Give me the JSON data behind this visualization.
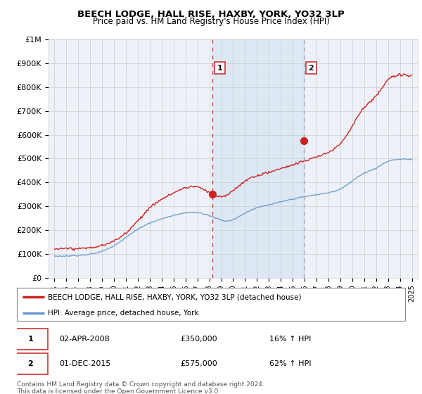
{
  "title": "BEECH LODGE, HALL RISE, HAXBY, YORK, YO32 3LP",
  "subtitle": "Price paid vs. HM Land Registry's House Price Index (HPI)",
  "hpi_label": "HPI: Average price, detached house, York",
  "property_label": "BEECH LODGE, HALL RISE, HAXBY, YORK, YO32 3LP (detached house)",
  "footer": "Contains HM Land Registry data © Crown copyright and database right 2024.\nThis data is licensed under the Open Government Licence v3.0.",
  "sale1_date": 2008.25,
  "sale1_price": 350000,
  "sale1_label": "1",
  "sale1_text": "02-APR-2008",
  "sale1_hpi_change": "16% ↑ HPI",
  "sale2_date": 2015.92,
  "sale2_price": 575000,
  "sale2_label": "2",
  "sale2_text": "01-DEC-2015",
  "sale2_hpi_change": "62% ↑ HPI",
  "ylim": [
    0,
    1000000
  ],
  "xlim_start": 1994.5,
  "xlim_end": 2025.5,
  "hpi_color": "#6699cc",
  "property_color": "#cc2222",
  "shade_color": "#dce9f5",
  "dashed1_color": "#dd4444",
  "dashed2_color": "#aaaacc",
  "bg_color": "#eef2f8",
  "grid_color": "#cccccc",
  "ytick_labels": [
    "£0",
    "£100K",
    "£200K",
    "£300K",
    "£400K",
    "£500K",
    "£600K",
    "£700K",
    "£800K",
    "£900K",
    "£1M"
  ],
  "ytick_values": [
    0,
    100000,
    200000,
    300000,
    400000,
    500000,
    600000,
    700000,
    800000,
    900000,
    1000000
  ],
  "xtick_years": [
    1995,
    1996,
    1997,
    1998,
    1999,
    2000,
    2001,
    2002,
    2003,
    2004,
    2005,
    2006,
    2007,
    2008,
    2009,
    2010,
    2011,
    2012,
    2013,
    2014,
    2015,
    2016,
    2017,
    2018,
    2019,
    2020,
    2021,
    2022,
    2023,
    2024,
    2025
  ],
  "fig_width": 6.0,
  "fig_height": 5.6,
  "dpi": 100
}
